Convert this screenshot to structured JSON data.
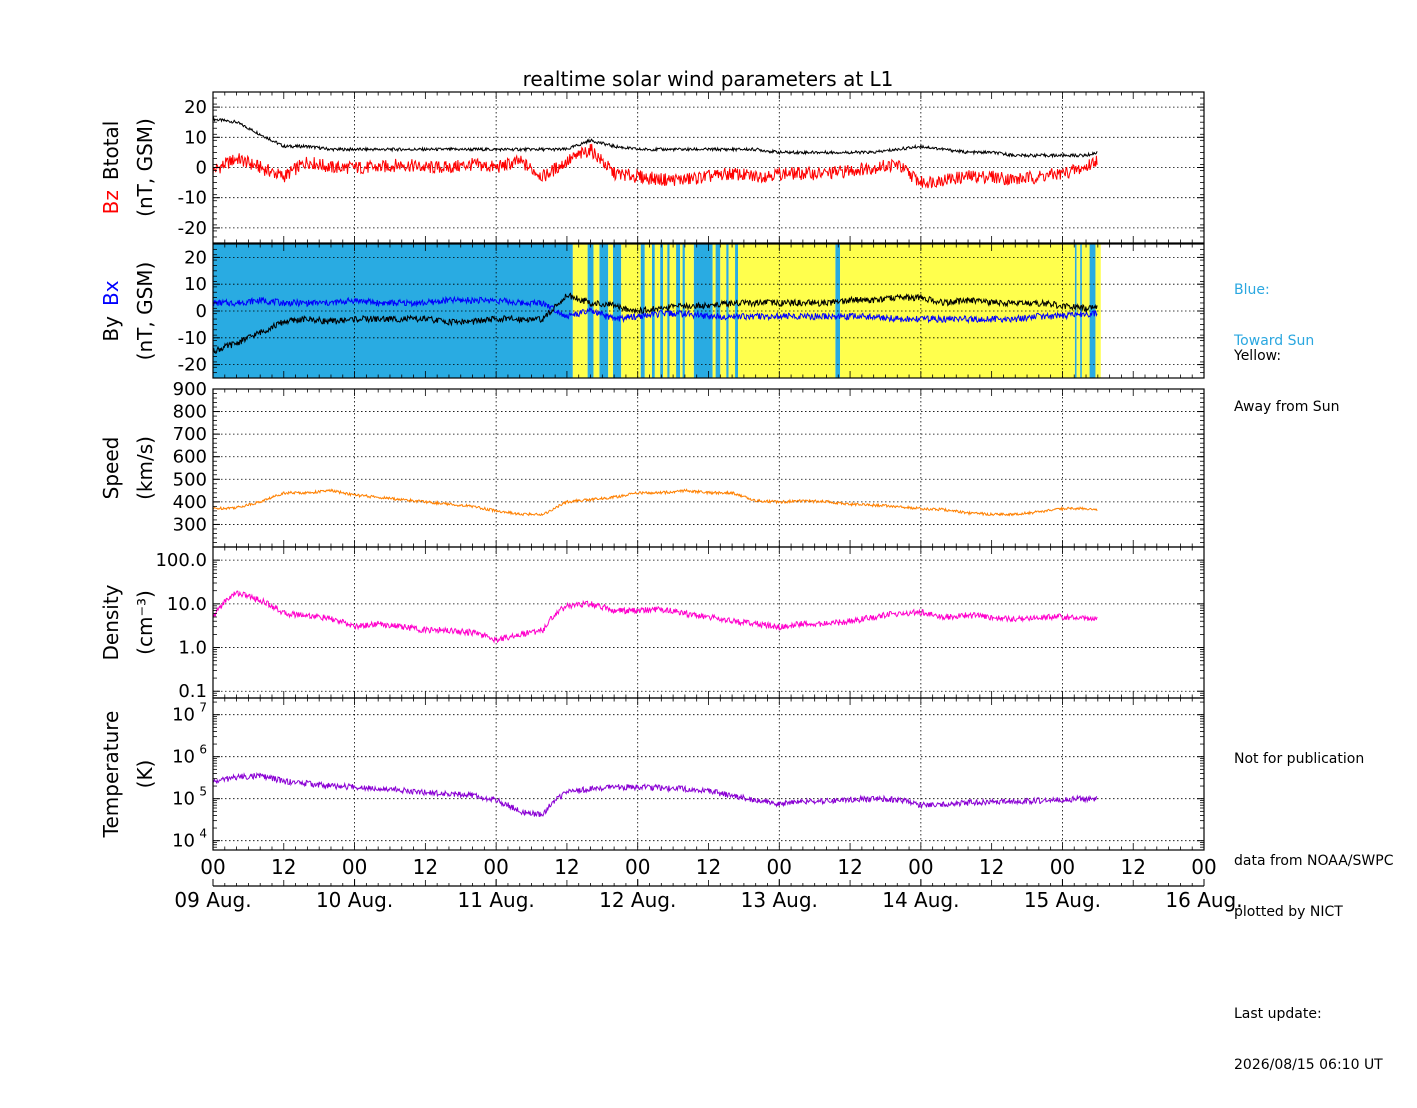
{
  "title": "realtime solar wind parameters at L1",
  "x_axis": {
    "hour_ticks": [
      "00",
      "12",
      "00",
      "12",
      "00",
      "12",
      "00",
      "12",
      "00",
      "12",
      "00",
      "12",
      "00",
      "12",
      "00"
    ],
    "day_labels": [
      "09 Aug.",
      "10 Aug.",
      "11 Aug.",
      "12 Aug.",
      "13 Aug.",
      "14 Aug.",
      "15 Aug.",
      "16 Aug."
    ],
    "range_hours": [
      0,
      168
    ]
  },
  "legend": {
    "blue_title": "Blue:",
    "blue_text": "Toward Sun",
    "yellow_title": "Yellow:",
    "yellow_text": "Away from Sun"
  },
  "notes": {
    "publication": "Not for publication",
    "source": "data from NOAA/SWPC",
    "plotted": "plotted by NICT",
    "update_label": "Last update:",
    "update_time": "2026/08/15 06:10 UT"
  },
  "colors": {
    "btotal": "#000000",
    "bz": "#ff0000",
    "bx": "#0000ff",
    "by": "#000000",
    "speed": "#ff8000",
    "density": "#ff00cc",
    "temperature": "#8a00d4",
    "toward": "#29abe2",
    "away": "#ffff4d",
    "toward_text": "#2aa7e0"
  },
  "chart_data": [
    {
      "type": "line",
      "panel": "magnetic field strength",
      "ylabel_parts": [
        "Bz",
        "Btotal"
      ],
      "yunits": "(nT, GSM)",
      "ylim": [
        -25,
        25
      ],
      "yticks": [
        -20,
        -10,
        0,
        10,
        20
      ],
      "grid": true,
      "x_hours": [
        0,
        4,
        8,
        12,
        16,
        20,
        24,
        28,
        32,
        36,
        40,
        44,
        48,
        52,
        56,
        60,
        64,
        68,
        72,
        76,
        80,
        84,
        88,
        92,
        96,
        100,
        104,
        108,
        112,
        116,
        120,
        124,
        128,
        132,
        136,
        140,
        144,
        148,
        150
      ],
      "series": [
        {
          "name": "Btotal",
          "values": [
            16,
            15,
            11,
            7,
            7,
            6,
            6,
            6,
            6,
            6,
            6,
            6,
            6,
            6,
            6,
            6,
            9,
            7,
            6,
            6,
            6,
            6,
            6,
            6,
            5,
            5,
            5,
            5,
            5,
            6,
            7,
            6,
            5,
            5,
            4,
            4,
            4,
            4,
            5
          ]
        },
        {
          "name": "Bz",
          "values": [
            -1,
            3,
            0,
            -3,
            2,
            0,
            0,
            0,
            1,
            0,
            0,
            1,
            0,
            2,
            -3,
            2,
            6,
            -2,
            -3,
            -4,
            -4,
            -3,
            -2,
            -3,
            -2,
            -2,
            -2,
            -1,
            0,
            1,
            -5,
            -4,
            -3,
            -3,
            -4,
            -3,
            -2,
            0,
            3
          ]
        }
      ]
    },
    {
      "type": "line",
      "panel": "magnetic field components",
      "ylabel_parts": [
        "By",
        "Bx"
      ],
      "yunits": "(nT, GSM)",
      "ylim": [
        -25,
        25
      ],
      "yticks": [
        -20,
        -10,
        0,
        10,
        20
      ],
      "grid": true,
      "x_hours": [
        0,
        4,
        8,
        12,
        16,
        20,
        24,
        28,
        32,
        36,
        40,
        44,
        48,
        52,
        56,
        60,
        64,
        68,
        72,
        76,
        80,
        84,
        88,
        92,
        96,
        100,
        104,
        108,
        112,
        116,
        120,
        124,
        128,
        132,
        136,
        140,
        144,
        148,
        150
      ],
      "series": [
        {
          "name": "Bx",
          "values": [
            3,
            3,
            4,
            3,
            3,
            3,
            4,
            3,
            3,
            3,
            4,
            4,
            4,
            3,
            3,
            -2,
            0,
            -3,
            -2,
            -1,
            -1,
            -2,
            -2,
            -2,
            -2,
            -2,
            -2,
            -2,
            -2,
            -3,
            -3,
            -3,
            -3,
            -3,
            -3,
            -2,
            -2,
            -1,
            -1
          ]
        },
        {
          "name": "By",
          "values": [
            -15,
            -12,
            -8,
            -4,
            -3,
            -4,
            -3,
            -3,
            -3,
            -3,
            -4,
            -4,
            -3,
            -3,
            -3,
            6,
            3,
            2,
            0,
            1,
            2,
            2,
            3,
            3,
            3,
            3,
            3,
            4,
            4,
            5,
            5,
            3,
            4,
            3,
            3,
            3,
            2,
            1,
            2
          ]
        }
      ],
      "sector_intervals_hours": {
        "toward": [
          [
            0,
            61
          ],
          [
            63.5,
            64.5
          ],
          [
            65.5,
            67
          ],
          [
            67.8,
            69.2
          ],
          [
            72.5,
            73.2
          ],
          [
            74.4,
            74.9
          ],
          [
            75.8,
            76.3
          ],
          [
            77,
            77.4
          ],
          [
            78.5,
            79.2
          ],
          [
            79.6,
            80
          ],
          [
            81.5,
            84.7
          ],
          [
            85.2,
            86
          ],
          [
            87,
            87.4
          ],
          [
            88.5,
            89
          ],
          [
            105.5,
            106.3
          ],
          [
            147,
            147.3
          ],
          [
            146.1,
            146.4
          ],
          [
            148.6,
            149.6
          ]
        ],
        "away": [
          [
            61,
            63.5
          ],
          [
            64.5,
            65.5
          ],
          [
            67,
            67.8
          ],
          [
            69.2,
            72.5
          ],
          [
            73.2,
            74.4
          ],
          [
            74.9,
            75.8
          ],
          [
            76.3,
            77
          ],
          [
            77.4,
            78.5
          ],
          [
            79.2,
            79.6
          ],
          [
            80,
            81.5
          ],
          [
            84.7,
            85.2
          ],
          [
            86,
            87
          ],
          [
            87.4,
            88.5
          ],
          [
            89,
            105.5
          ],
          [
            106.3,
            146.1
          ],
          [
            146.4,
            147
          ],
          [
            147.3,
            148.6
          ],
          [
            149.6,
            150.5
          ]
        ]
      }
    },
    {
      "type": "line",
      "panel": "solar wind speed",
      "ylabel": "Speed",
      "yunits": "(km/s)",
      "ylim": [
        200,
        900
      ],
      "yticks": [
        300,
        400,
        500,
        600,
        700,
        800,
        900
      ],
      "grid": true,
      "x_hours": [
        0,
        4,
        8,
        12,
        16,
        20,
        24,
        28,
        32,
        36,
        40,
        44,
        48,
        52,
        56,
        60,
        64,
        68,
        72,
        76,
        80,
        84,
        88,
        92,
        96,
        100,
        104,
        108,
        112,
        116,
        120,
        124,
        128,
        132,
        136,
        140,
        144,
        148,
        150
      ],
      "series": [
        {
          "name": "Speed",
          "values": [
            370,
            375,
            400,
            440,
            440,
            450,
            430,
            420,
            410,
            400,
            390,
            380,
            360,
            345,
            345,
            400,
            410,
            420,
            440,
            440,
            450,
            440,
            440,
            405,
            400,
            405,
            400,
            390,
            385,
            380,
            370,
            365,
            350,
            345,
            345,
            355,
            370,
            370,
            365
          ]
        }
      ]
    },
    {
      "type": "line",
      "panel": "proton density",
      "ylabel": "Density",
      "yunits": "(cm⁻³)",
      "yscale": "log",
      "ylim": [
        0.07,
        200
      ],
      "yticks": [
        0.1,
        1.0,
        10.0,
        100.0
      ],
      "ytick_labels": [
        "0.1",
        "1.0",
        "10.0",
        "100.0"
      ],
      "grid": true,
      "x_hours": [
        0,
        4,
        8,
        12,
        16,
        20,
        24,
        28,
        32,
        36,
        40,
        44,
        48,
        52,
        56,
        60,
        64,
        68,
        72,
        76,
        80,
        84,
        88,
        92,
        96,
        100,
        104,
        108,
        112,
        116,
        120,
        124,
        128,
        132,
        136,
        140,
        144,
        148,
        150
      ],
      "series": [
        {
          "name": "Density",
          "values": [
            4.5,
            18,
            12,
            6,
            5.5,
            4.5,
            3,
            3.5,
            3,
            2.5,
            2.5,
            2.2,
            1.5,
            2,
            2.5,
            9,
            10,
            7,
            7,
            7.5,
            6,
            5,
            4,
            3.5,
            3,
            3.5,
            3.5,
            4,
            5,
            6,
            6.5,
            5,
            5.5,
            5,
            4.5,
            5,
            5,
            4.5,
            4.5
          ]
        }
      ]
    },
    {
      "type": "line",
      "panel": "proton temperature",
      "ylabel": "Temperature",
      "yunits": "(K)",
      "yscale": "log",
      "ylim": [
        6000,
        25000000
      ],
      "yticks": [
        10000,
        100000,
        1000000,
        10000000
      ],
      "ytick_labels": [
        "10",
        "10",
        "10",
        "10"
      ],
      "ytick_exponents": [
        "4",
        "5",
        "6",
        "7"
      ],
      "grid": true,
      "x_hours": [
        0,
        4,
        8,
        12,
        16,
        20,
        24,
        28,
        32,
        36,
        40,
        44,
        48,
        52,
        56,
        60,
        64,
        68,
        72,
        76,
        80,
        84,
        88,
        92,
        96,
        100,
        104,
        108,
        112,
        116,
        120,
        124,
        128,
        132,
        136,
        140,
        144,
        148,
        150
      ],
      "series": [
        {
          "name": "Temperature",
          "values": [
            250000,
            330000,
            350000,
            260000,
            230000,
            200000,
            190000,
            180000,
            160000,
            140000,
            130000,
            120000,
            90000,
            50000,
            40000,
            140000,
            170000,
            190000,
            190000,
            180000,
            170000,
            150000,
            120000,
            90000,
            75000,
            85000,
            90000,
            95000,
            100000,
            95000,
            70000,
            75000,
            80000,
            85000,
            85000,
            90000,
            95000,
            100000,
            100000
          ]
        }
      ]
    }
  ]
}
